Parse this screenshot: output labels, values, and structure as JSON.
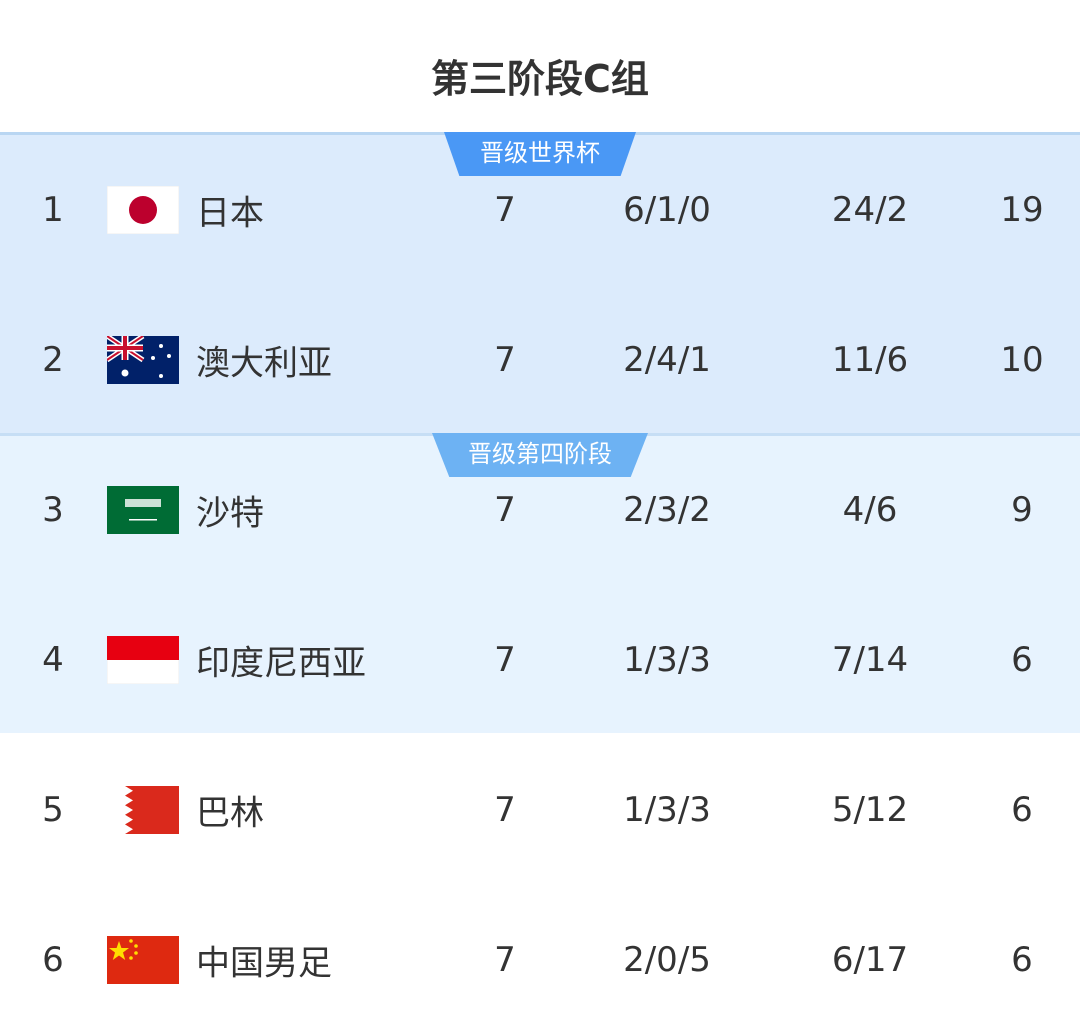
{
  "title": "第三阶段C组",
  "zones": [
    {
      "label": "晋级世界杯",
      "color": "#4a98f5",
      "background": "#dcebfc"
    },
    {
      "label": "晋级第四阶段",
      "color": "#6db2f3",
      "background": "#e7f3fe"
    }
  ],
  "rows": [
    {
      "rank": "1",
      "flag": "japan-flag",
      "team": "日本",
      "played": "7",
      "wdl": "6/1/0",
      "goals": "24/2",
      "points": "19"
    },
    {
      "rank": "2",
      "flag": "australia-flag",
      "team": "澳大利亚",
      "played": "7",
      "wdl": "2/4/1",
      "goals": "11/6",
      "points": "10"
    },
    {
      "rank": "3",
      "flag": "saudi-arabia-flag",
      "team": "沙特",
      "played": "7",
      "wdl": "2/3/2",
      "goals": "4/6",
      "points": "9"
    },
    {
      "rank": "4",
      "flag": "indonesia-flag",
      "team": "印度尼西亚",
      "played": "7",
      "wdl": "1/3/3",
      "goals": "7/14",
      "points": "6"
    },
    {
      "rank": "5",
      "flag": "bahrain-flag",
      "team": "巴林",
      "played": "7",
      "wdl": "1/3/3",
      "goals": "5/12",
      "points": "6"
    },
    {
      "rank": "6",
      "flag": "china-flag",
      "team": "中国男足",
      "played": "7",
      "wdl": "2/0/5",
      "goals": "6/17",
      "points": "6"
    }
  ]
}
